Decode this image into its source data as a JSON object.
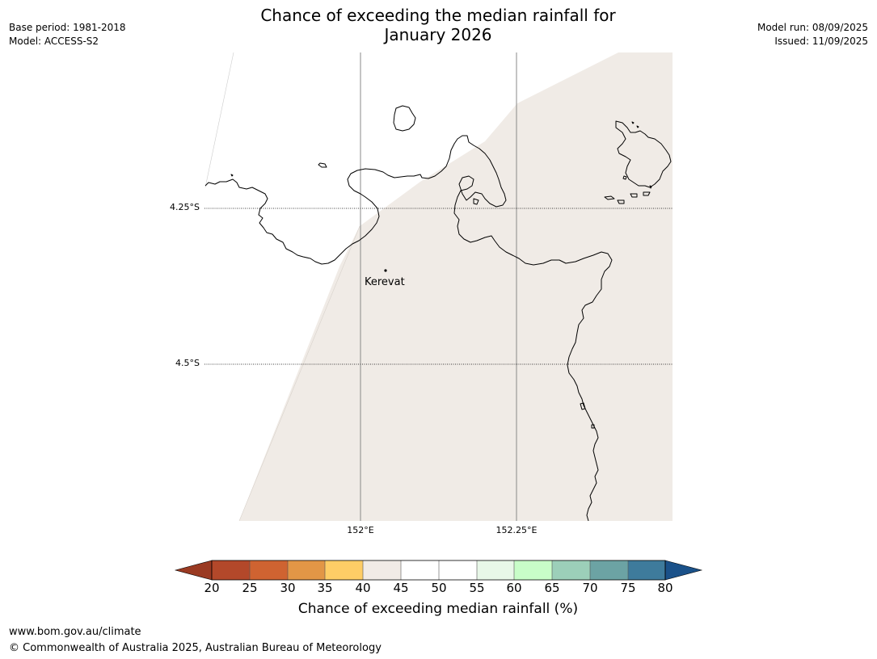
{
  "title_line1": "Chance of exceeding the median rainfall for",
  "title_line2": "January 2026",
  "meta_left": {
    "base_period": "Base period: 1981-2018",
    "model": "Model: ACCESS-S2"
  },
  "meta_right": {
    "model_run": "Model run: 08/09/2025",
    "issued": "Issued: 11/09/2025"
  },
  "map": {
    "lat_labels": [
      "4.25°S",
      "4.5°S"
    ],
    "lon_labels": [
      "152°E",
      "152.25°E"
    ],
    "place": {
      "name": "Kerevat"
    },
    "forecast_fill_color": "#f0ebe6",
    "forecast_category": "40-45"
  },
  "colorbar": {
    "title": "Chance of exceeding median rainfall (%)",
    "ticks": [
      "20",
      "25",
      "30",
      "35",
      "40",
      "45",
      "50",
      "55",
      "60",
      "65",
      "70",
      "75",
      "80"
    ],
    "colors": [
      "#9a3a22",
      "#b3482a",
      "#cf6331",
      "#e29646",
      "#fecd66",
      "#f1ebe6",
      "#ffffff",
      "#ffffff",
      "#e8f7e8",
      "#c8fdc8",
      "#9ccfb9",
      "#6ca3a4",
      "#3e7b9c",
      "#1a5189"
    ],
    "extend": "both"
  },
  "footer": {
    "url": "www.bom.gov.au/climate",
    "copyright": "© Commonwealth of Australia 2025, Australian Bureau of Meteorology"
  }
}
